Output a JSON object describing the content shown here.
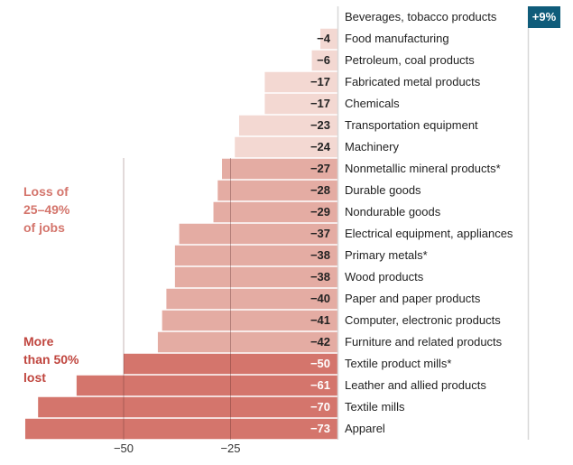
{
  "chart_data": {
    "type": "bar",
    "orientation": "horizontal",
    "title": "",
    "xlabel": "",
    "ylabel": "",
    "xlim": [
      -73,
      9
    ],
    "x_ticks": [
      {
        "value": -50,
        "label": "−50"
      },
      {
        "value": -25,
        "label": "−25"
      }
    ],
    "grid": "vertical lines at tick values",
    "categories": [
      "Beverages, tobacco products",
      "Food manufacturing",
      "Petroleum, coal products",
      "Fabricated metal products",
      "Chemicals",
      "Transportation equipment",
      "Machinery",
      "Nonmetallic mineral products*",
      "Durable goods",
      "Nondurable goods",
      "Electrical equipment, appliances",
      "Primary metals*",
      "Wood products",
      "Paper and paper products",
      "Computer, electronic products",
      "Furniture and related products",
      "Textile product mills*",
      "Leather and allied products",
      "Textile mills",
      "Apparel"
    ],
    "values": [
      9,
      -4,
      -6,
      -17,
      -17,
      -23,
      -24,
      -27,
      -28,
      -29,
      -37,
      -38,
      -38,
      -40,
      -41,
      -42,
      -50,
      -61,
      -70,
      -73
    ],
    "value_labels": [
      "+9%",
      "−4",
      "−6",
      "−17",
      "−17",
      "−23",
      "−24",
      "−27",
      "−28",
      "−29",
      "−37",
      "−38",
      "−38",
      "−40",
      "−41",
      "−42",
      "−50",
      "−61",
      "−70",
      "−73"
    ],
    "groups": [
      {
        "name": "gain",
        "color": "#0f5c7a",
        "label_color": "#ffffff"
      },
      {
        "name": "loss under 25%",
        "color": "#f3d8d2",
        "label_color": "#222222"
      },
      {
        "name": "loss 25–49%",
        "color": "#e4aca3",
        "label_color": "#222222"
      },
      {
        "name": "loss 50%+",
        "color": "#d4756c",
        "label_color": "#ffffff"
      }
    ],
    "annotations": [
      {
        "lines": [
          "Loss of",
          "25–49%",
          "of jobs"
        ],
        "color": "#d4756c",
        "group": "loss 25–49%"
      },
      {
        "lines": [
          "More",
          "than 50%",
          "lost"
        ],
        "color": "#c0463f",
        "group": "loss 50%+"
      }
    ]
  }
}
